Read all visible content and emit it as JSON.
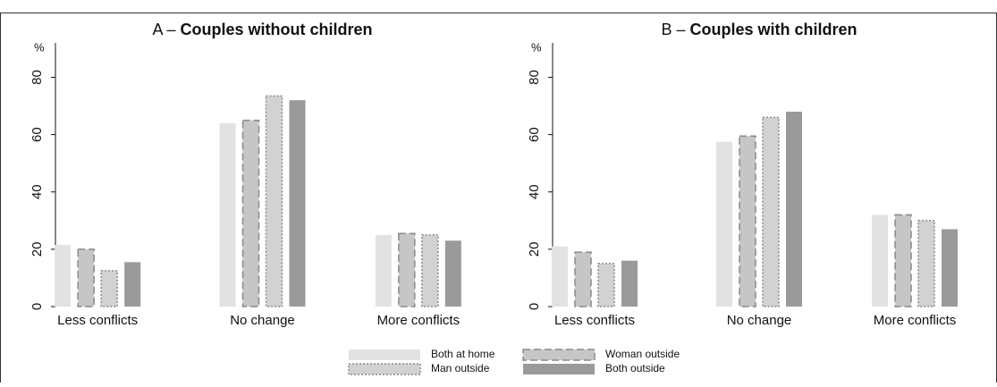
{
  "chart_data": [
    {
      "type": "bar",
      "label": "A –",
      "title": "Couples without children",
      "ylabel": "%",
      "categories": [
        "Less conflicts",
        "No change",
        "More conflicts"
      ],
      "series": [
        {
          "name": "Both at home",
          "color": "#e2e2e2",
          "values": [
            21.5,
            64,
            25
          ]
        },
        {
          "name": "Woman outside",
          "color": "#c6c6c6",
          "values": [
            20,
            65,
            25.5
          ]
        },
        {
          "name": "Man outside",
          "color": "#d2d2d2",
          "values": [
            12.5,
            73.5,
            25
          ]
        },
        {
          "name": "Both outside",
          "color": "#9a9a9a",
          "values": [
            15.5,
            72,
            23
          ]
        }
      ],
      "ylim": [
        0,
        92
      ],
      "yticks": [
        0,
        20,
        40,
        60,
        80
      ]
    },
    {
      "type": "bar",
      "label": "B –",
      "title": "Couples with children",
      "ylabel": "%",
      "categories": [
        "Less conflicts",
        "No change",
        "More conflicts"
      ],
      "series": [
        {
          "name": "Both at home",
          "color": "#e2e2e2",
          "values": [
            21,
            57.5,
            32
          ]
        },
        {
          "name": "Woman outside",
          "color": "#c6c6c6",
          "values": [
            19,
            59.5,
            32
          ]
        },
        {
          "name": "Man outside",
          "color": "#d2d2d2",
          "values": [
            15,
            66,
            30
          ]
        },
        {
          "name": "Both outside",
          "color": "#9a9a9a",
          "values": [
            16,
            68,
            27
          ]
        }
      ],
      "ylim": [
        0,
        92
      ],
      "yticks": [
        0,
        20,
        40,
        60,
        80
      ]
    }
  ]
}
